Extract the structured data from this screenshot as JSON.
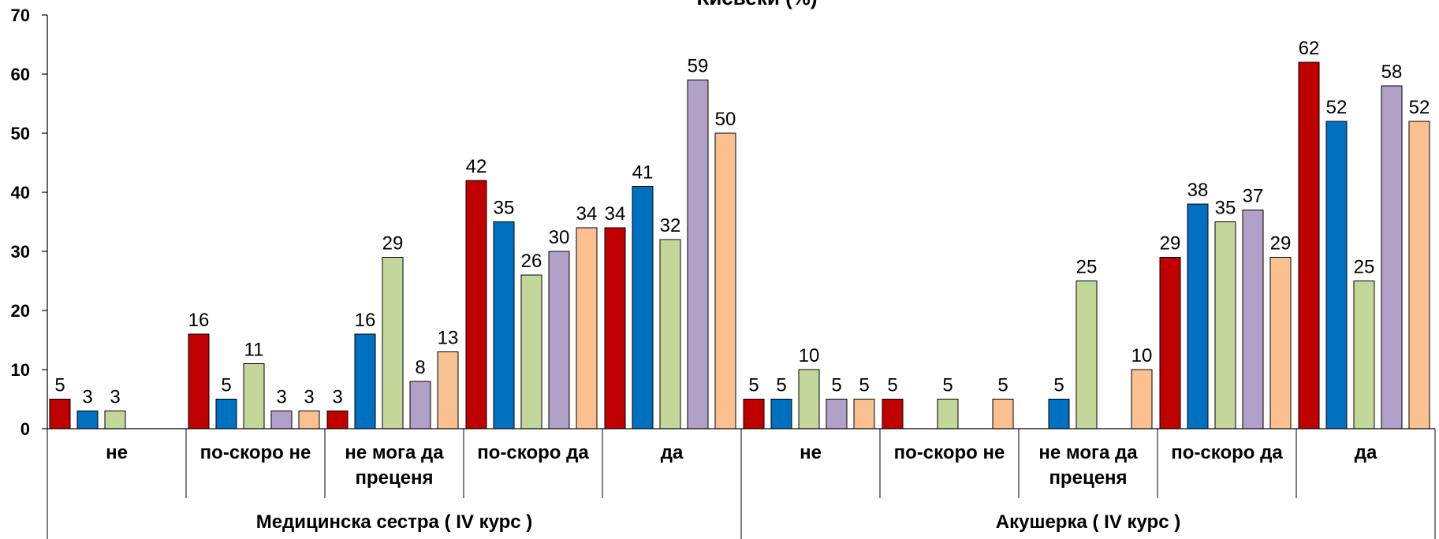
{
  "chart_data": {
    "type": "bar",
    "title": "Кисвеки (%)",
    "ylim": [
      0,
      70
    ],
    "yticks": [
      0,
      10,
      20,
      30,
      40,
      50,
      60,
      70
    ],
    "grid": false,
    "legend": "none",
    "colors": [
      "#C00000",
      "#0070C0",
      "#C4D79B",
      "#B1A0C7",
      "#FAC090"
    ],
    "groups": [
      {
        "label": "Медицинска сестра ( IV курс )",
        "categories": [
          {
            "label": [
              "не"
            ],
            "values": [
              5,
              3,
              3,
              null,
              null
            ]
          },
          {
            "label": [
              "по-скоро не"
            ],
            "values": [
              16,
              5,
              11,
              3,
              3
            ]
          },
          {
            "label": [
              "не мога да",
              "преценя"
            ],
            "values": [
              3,
              16,
              29,
              8,
              13
            ]
          },
          {
            "label": [
              "по-скоро да"
            ],
            "values": [
              42,
              35,
              26,
              30,
              34
            ]
          },
          {
            "label": [
              "да"
            ],
            "values": [
              34,
              41,
              32,
              59,
              50
            ]
          }
        ]
      },
      {
        "label": "Акушерка ( IV курс )",
        "categories": [
          {
            "label": [
              "не"
            ],
            "values": [
              5,
              5,
              10,
              5,
              5
            ]
          },
          {
            "label": [
              "по-скоро не"
            ],
            "values": [
              5,
              null,
              5,
              null,
              5
            ]
          },
          {
            "label": [
              "не мога да",
              "преценя"
            ],
            "values": [
              null,
              5,
              25,
              null,
              10
            ]
          },
          {
            "label": [
              "по-скоро да"
            ],
            "values": [
              29,
              38,
              35,
              37,
              29
            ]
          },
          {
            "label": [
              "да"
            ],
            "values": [
              62,
              52,
              25,
              58,
              52
            ]
          }
        ]
      }
    ]
  }
}
